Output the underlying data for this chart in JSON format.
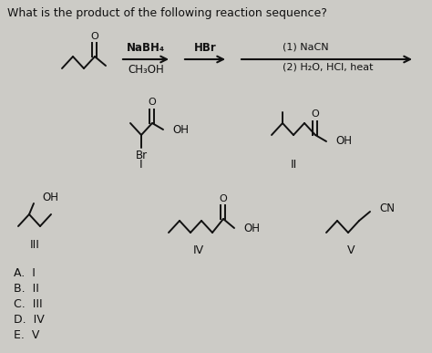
{
  "title": "What is the product of the following reaction sequence?",
  "background_color": "#cccbc6",
  "text_color": "#111111",
  "answer_choices": [
    "A.  I",
    "B.  II",
    "C.  III",
    "D.  IV",
    "E.  V"
  ],
  "reagents_1": "NaBH₄",
  "reagents_1b": "CH₃OH",
  "reagents_2": "HBr",
  "reagents_3a": "(1) NaCN",
  "reagents_3b": "(2) H₂O, HCl, heat",
  "label_I": "I",
  "label_II": "II",
  "label_III": "III",
  "label_IV": "IV",
  "label_V": "V"
}
